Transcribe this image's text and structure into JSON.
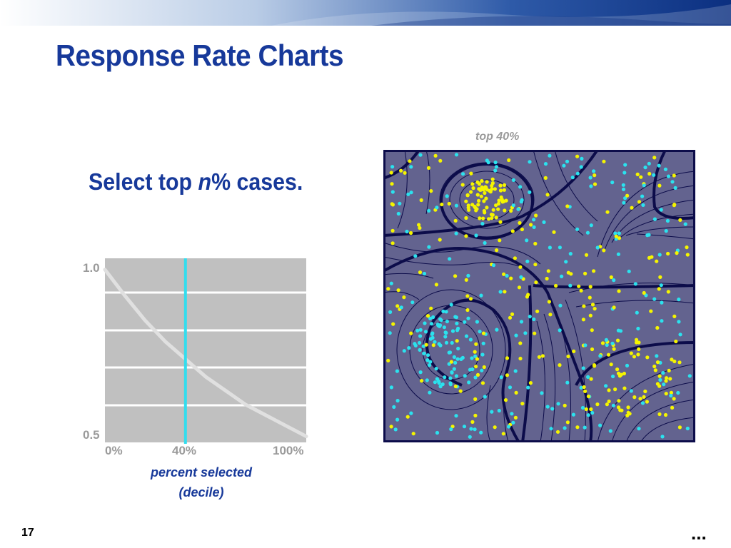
{
  "slide": {
    "title": "Response Rate Charts",
    "subtitle_pre": "Select top ",
    "subtitle_var": "n",
    "subtitle_post": "% cases.",
    "page_number": "17",
    "more_indicator": "..."
  },
  "scatter": {
    "label": "top 40%",
    "colors": {
      "background": "#63638f",
      "dot_a": "#f5f500",
      "dot_b": "#2be2ee",
      "contour": "#0c0c4a"
    }
  },
  "chart_data": {
    "type": "line",
    "x_tick_labels": [
      "0%",
      "40%",
      "100%"
    ],
    "y_tick_labels": [
      "1.0",
      "0.5"
    ],
    "xlabel_line1": "percent selected",
    "xlabel_line2": "(decile)",
    "xlim": [
      0,
      100
    ],
    "ylim": [
      0.5,
      1.0
    ],
    "series": [
      {
        "x": [
          0,
          10,
          20,
          30,
          40,
          50,
          60,
          70,
          80,
          90,
          100
        ],
        "y": [
          0.98,
          0.905,
          0.835,
          0.775,
          0.725,
          0.675,
          0.635,
          0.595,
          0.565,
          0.535,
          0.505
        ]
      }
    ],
    "marker_x": 40,
    "grid": true,
    "colors": {
      "plot_bg": "#c0c0c0",
      "grid": "#ffffff",
      "line": "#e0e0e0",
      "marker": "#33ddee"
    }
  }
}
